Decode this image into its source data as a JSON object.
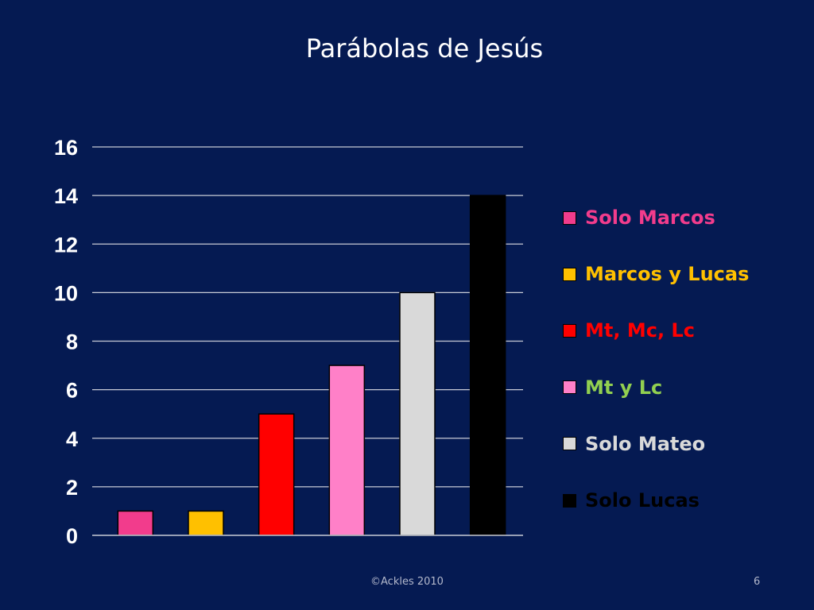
{
  "slide": {
    "background": "#051a52",
    "footer_copyright": "©Ackles 2010",
    "page_number": "6"
  },
  "chart_data": {
    "type": "bar",
    "title": "Parábolas de Jesús",
    "xlabel": "",
    "ylabel": "",
    "ylim": [
      0,
      16
    ],
    "yticks": [
      "0",
      "2",
      "4",
      "6",
      "8",
      "10",
      "12",
      "14",
      "16"
    ],
    "grid": true,
    "legend_position": "right",
    "series": [
      {
        "name": "Solo Marcos",
        "values": [
          1
        ],
        "color": "#f23c8c",
        "label_color": "#f23c8c"
      },
      {
        "name": "Marcos y Lucas",
        "values": [
          1
        ],
        "color": "#ffc000",
        "label_color": "#ffc000"
      },
      {
        "name": "Mt, Mc, Lc",
        "values": [
          5
        ],
        "color": "#ff0000",
        "label_color": "#ff0000"
      },
      {
        "name": "Mt y Lc",
        "values": [
          7
        ],
        "color": "#ff80c8",
        "label_color": "#92d050"
      },
      {
        "name": "Solo Mateo",
        "values": [
          10
        ],
        "color": "#d9d9d9",
        "label_color": "#d9d9d9"
      },
      {
        "name": "Solo Lucas",
        "values": [
          14
        ],
        "color": "#000000",
        "label_color": "#000000"
      }
    ]
  }
}
